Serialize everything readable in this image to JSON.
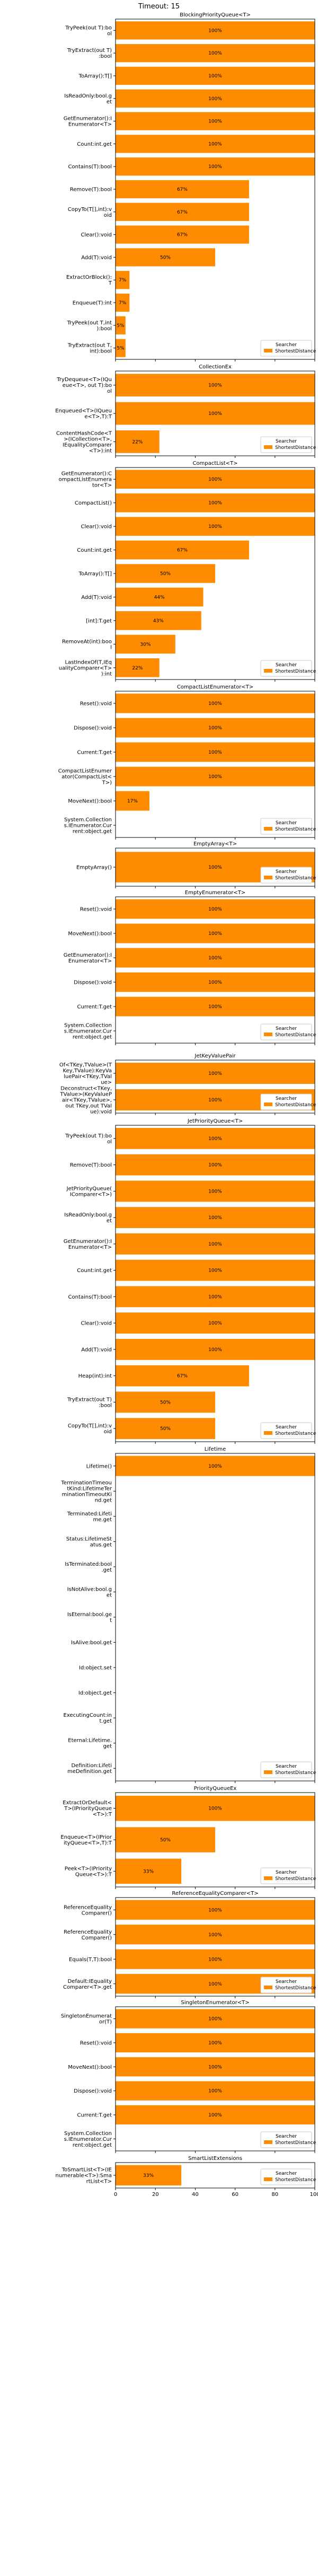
{
  "title": "Timeout: 15",
  "chart_data": [
    {
      "type": "bar",
      "title": "BlockingPriorityQueue<T>",
      "legend": {
        "title": "Searcher",
        "label": "ShortestDistance",
        "color": "#ff8c00"
      },
      "categories": [
        "TryPeek(out T):bool",
        "TryExtract(out T):bool",
        "ToArray():T[]",
        "IsReadOnly:bool.get",
        "GetEnumerator():IEnumerator<T>",
        "Count:int.get",
        "Contains(T):bool",
        "Remove(T):bool",
        "CopyTo(T[],int):void",
        "Clear():void",
        "Add(T):void",
        "ExtractOrBlock():T",
        "Enqueue(T):int",
        "TryPeek(out T,int):bool",
        "TryExtract(out T,int):bool"
      ],
      "values": [
        100,
        100,
        100,
        100,
        100,
        100,
        100,
        67,
        67,
        67,
        50,
        7,
        7,
        5,
        5
      ],
      "labels": [
        "100%",
        "100%",
        "100%",
        "100%",
        "100%",
        "100%",
        "100%",
        "67%",
        "67%",
        "67%",
        "50%",
        "7%",
        "7%",
        "5%",
        "5%"
      ]
    },
    {
      "type": "bar",
      "title": "CollectionEx",
      "legend": {
        "title": "Searcher",
        "label": "ShortestDistance",
        "color": "#ff8c00"
      },
      "categories": [
        "TryDequeue<T>(IQueue<T>, out T):bool",
        "Enqueued<T>(IQueue<T>,T):T",
        "ContentHashCode<T>(ICollection<T>,IEqualityComparer<T>):int"
      ],
      "values": [
        100,
        100,
        22
      ],
      "labels": [
        "100%",
        "100%",
        "22%"
      ]
    },
    {
      "type": "bar",
      "title": "CompactList<T>",
      "legend": {
        "title": "Searcher",
        "label": "ShortestDistance",
        "color": "#ff8c00"
      },
      "categories": [
        "GetEnumerator():CompactListEnumerator<T>",
        "CompactList()",
        "Clear():void",
        "Count:int.get",
        "ToArray():T[]",
        "Add(T):void",
        "[int]:T.get",
        "RemoveAt(int):bool",
        "LastIndexOf(T,IEqualityComparer<T>):int"
      ],
      "values": [
        100,
        100,
        100,
        67,
        50,
        44,
        43,
        30,
        22
      ],
      "labels": [
        "100%",
        "100%",
        "100%",
        "67%",
        "50%",
        "44%",
        "43%",
        "30%",
        "22%"
      ]
    },
    {
      "type": "bar",
      "title": "CompactListEnumerator<T>",
      "legend": {
        "title": "Searcher",
        "label": "ShortestDistance",
        "color": "#ff8c00"
      },
      "categories": [
        "Reset():void",
        "Dispose():void",
        "Current:T.get",
        "CompactListEnumerator(CompactList<T>)",
        "MoveNext():bool",
        "System.Collections.IEnumerator.Current:object.get"
      ],
      "values": [
        100,
        100,
        100,
        100,
        17,
        0
      ],
      "labels": [
        "100%",
        "100%",
        "100%",
        "100%",
        "17%",
        ""
      ]
    },
    {
      "type": "bar",
      "title": "EmptyArray<T>",
      "legend": {
        "title": "Searcher",
        "label": "ShortestDistance",
        "color": "#ff8c00"
      },
      "categories": [
        "EmptyArray()"
      ],
      "values": [
        100
      ],
      "labels": [
        "100%"
      ]
    },
    {
      "type": "bar",
      "title": "EmptyEnumerator<T>",
      "legend": {
        "title": "Searcher",
        "label": "ShortestDistance",
        "color": "#ff8c00"
      },
      "categories": [
        "Reset():void",
        "MoveNext():bool",
        "GetEnumerator():IEnumerator<T>",
        "Dispose():void",
        "Current:T.get",
        "System.Collections.IEnumerator.Current:object.get"
      ],
      "values": [
        100,
        100,
        100,
        100,
        100,
        0
      ],
      "labels": [
        "100%",
        "100%",
        "100%",
        "100%",
        "100%",
        ""
      ]
    },
    {
      "type": "bar",
      "title": "JetKeyValuePair",
      "legend": {
        "title": "Searcher",
        "label": "ShortestDistance",
        "color": "#ff8c00"
      },
      "categories": [
        "Of<TKey,TValue>(TKey,TValue):KeyValuePair<TKey,TValue>",
        "Deconstruct<TKey,TValue>(KeyValuePair<TKey,TValue>,out TKey,out TValue):void"
      ],
      "values": [
        100,
        100
      ],
      "labels": [
        "100%",
        "100%"
      ]
    },
    {
      "type": "bar",
      "title": "JetPriorityQueue<T>",
      "legend": {
        "title": "Searcher",
        "label": "ShortestDistance",
        "color": "#ff8c00"
      },
      "categories": [
        "TryPeek(out T):bool",
        "Remove(T):bool",
        "JetPriorityQueue(IComparer<T>)",
        "IsReadOnly:bool.get",
        "GetEnumerator():IEnumerator<T>",
        "Count:int.get",
        "Contains(T):bool",
        "Clear():void",
        "Add(T):void",
        "Heap(int):int",
        "TryExtract(out T):bool",
        "CopyTo(T[],int):void"
      ],
      "values": [
        100,
        100,
        100,
        100,
        100,
        100,
        100,
        100,
        100,
        67,
        50,
        50
      ],
      "labels": [
        "100%",
        "100%",
        "100%",
        "100%",
        "100%",
        "100%",
        "100%",
        "100%",
        "100%",
        "67%",
        "50%",
        "50%"
      ]
    },
    {
      "type": "bar",
      "title": "Lifetime",
      "legend": {
        "title": "Searcher",
        "label": "ShortestDistance",
        "color": "#ff8c00"
      },
      "categories": [
        "Lifetime()",
        "TerminationTimeoutKind:LifetimeTerminationTimeoutKind.get",
        "Terminated:Lifetime.get",
        "Status:LifetimeStatus.get",
        "IsTerminated:bool.get",
        "IsNotAlive:bool.get",
        "IsEternal:bool.get",
        "IsAlive:bool.get",
        "Id:object.set",
        "Id:object.get",
        "ExecutingCount:int.get",
        "Eternal:Lifetime.get",
        "Definition:LifetimeDefinition.get"
      ],
      "values": [
        100,
        0,
        0,
        0,
        0,
        0,
        0,
        0,
        0,
        0,
        0,
        0,
        0
      ],
      "labels": [
        "100%",
        "",
        "",
        "",
        "",
        "",
        "",
        "",
        "",
        "",
        "",
        "",
        ""
      ]
    },
    {
      "type": "bar",
      "title": "PriorityQueueEx",
      "legend": {
        "title": "Searcher",
        "label": "ShortestDistance",
        "color": "#ff8c00"
      },
      "categories": [
        "ExtractOrDefault<T>(IPriorityQueue<T>):T",
        "Enqueue<T>(IPriorityQueue<T>,T):T",
        "Peek<T>(IPriorityQueue<T>):T"
      ],
      "values": [
        100,
        50,
        33
      ],
      "labels": [
        "100%",
        "50%",
        "33%"
      ]
    },
    {
      "type": "bar",
      "title": "ReferenceEqualityComparer<T>",
      "legend": {
        "title": "Searcher",
        "label": "ShortestDistance",
        "color": "#ff8c00"
      },
      "categories": [
        "ReferenceEqualityComparer()",
        "ReferenceEqualityComparer()",
        "Equals(T,T):bool",
        "Default:IEqualityComparer<T>.get"
      ],
      "values": [
        100,
        100,
        100,
        100
      ],
      "labels": [
        "100%",
        "100%",
        "100%",
        "100%"
      ]
    },
    {
      "type": "bar",
      "title": "SingletonEnumerator<T>",
      "legend": {
        "title": "Searcher",
        "label": "ShortestDistance",
        "color": "#ff8c00"
      },
      "categories": [
        "SingletonEnumerator(T)",
        "Reset():void",
        "MoveNext():bool",
        "Dispose():void",
        "Current:T.get",
        "System.Collections.IEnumerator.Current:object.get"
      ],
      "values": [
        100,
        100,
        100,
        100,
        100,
        0
      ],
      "labels": [
        "100%",
        "100%",
        "100%",
        "100%",
        "100%",
        ""
      ]
    },
    {
      "type": "bar",
      "title": "SmartListExtensions",
      "legend": {
        "title": "Searcher",
        "label": "ShortestDistance",
        "color": "#ff8c00"
      },
      "categories": [
        "ToSmartList<T>(IEnumerable<T>):SmartList<T>"
      ],
      "values": [
        33
      ],
      "labels": [
        "33%"
      ]
    }
  ],
  "x_ticks": [
    "0",
    "20",
    "40",
    "60",
    "80",
    "100"
  ],
  "x_range": [
    0,
    100
  ]
}
